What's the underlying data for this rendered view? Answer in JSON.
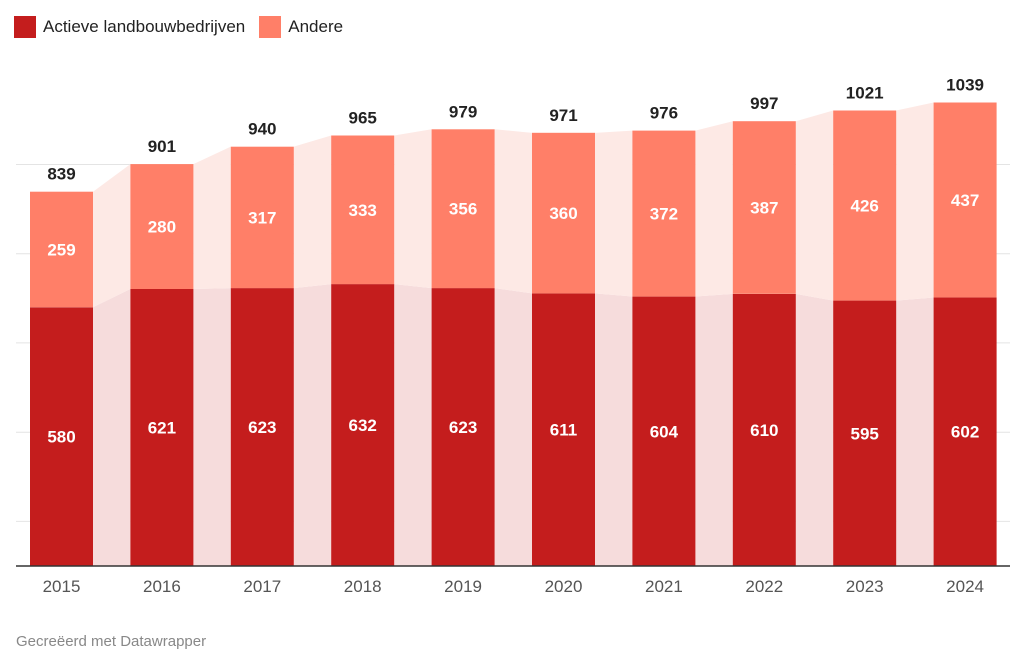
{
  "legend": {
    "items": [
      {
        "label": "Actieve landbouwbedrijven",
        "color": "#c41d1d"
      },
      {
        "label": "Andere",
        "color": "#ff7f68"
      }
    ]
  },
  "footer": {
    "credit": "Gecreëerd met Datawrapper"
  },
  "colors": {
    "bottom": "#c41d1d",
    "top": "#ff7f68",
    "band_bottom": "#f6dcdc",
    "band_top": "#fde9e5",
    "grid": "#e4e4e4",
    "axis": "#333333"
  },
  "chart_data": {
    "type": "bar",
    "stacked": true,
    "title": "",
    "xlabel": "",
    "ylabel": "",
    "categories": [
      "2015",
      "2016",
      "2017",
      "2018",
      "2019",
      "2020",
      "2021",
      "2022",
      "2023",
      "2024"
    ],
    "series": [
      {
        "name": "Actieve landbouwbedrijven",
        "values": [
          580,
          621,
          623,
          632,
          623,
          611,
          604,
          610,
          595,
          602
        ]
      },
      {
        "name": "Andere",
        "values": [
          259,
          280,
          317,
          333,
          356,
          360,
          372,
          387,
          426,
          437
        ]
      }
    ],
    "totals": [
      839,
      901,
      940,
      965,
      979,
      971,
      976,
      997,
      1021,
      1039
    ],
    "ylim": [
      0,
      1050
    ],
    "grid": true,
    "legend_position": "top-left"
  }
}
